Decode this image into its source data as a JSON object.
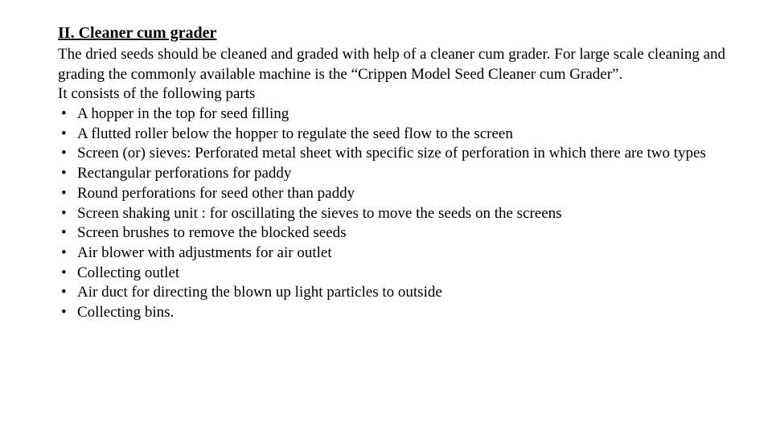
{
  "document": {
    "heading": "II. Cleaner cum grader",
    "intro_paragraph": "The dried seeds should be cleaned and graded with help of a cleaner cum grader. For large scale cleaning and grading the commonly available machine is the “Crippen Model Seed Cleaner cum Grader”.",
    "parts_intro": "It consists of the following parts",
    "bullets": [
      "A hopper in the top for seed filling",
      "A flutted roller below the hopper to regulate the seed flow to the screen",
      "Screen (or) sieves: Perforated metal sheet with specific size of perforation in which there are two types",
      "Rectangular perforations for paddy",
      " Round perforations for seed other than paddy",
      "Screen shaking unit : for oscillating the sieves to move the seeds on the screens",
      "Screen brushes to remove the blocked seeds",
      "Air blower with adjustments for air outlet",
      "Collecting outlet",
      "Air duct for directing the blown up light particles to outside",
      "Collecting bins."
    ],
    "colors": {
      "background": "#ffffff",
      "text": "#000000"
    },
    "typography": {
      "font_family": "Times New Roman",
      "heading_fontsize_pt": 15,
      "body_fontsize_pt": 14,
      "heading_weight": "bold",
      "heading_underline": true
    }
  }
}
